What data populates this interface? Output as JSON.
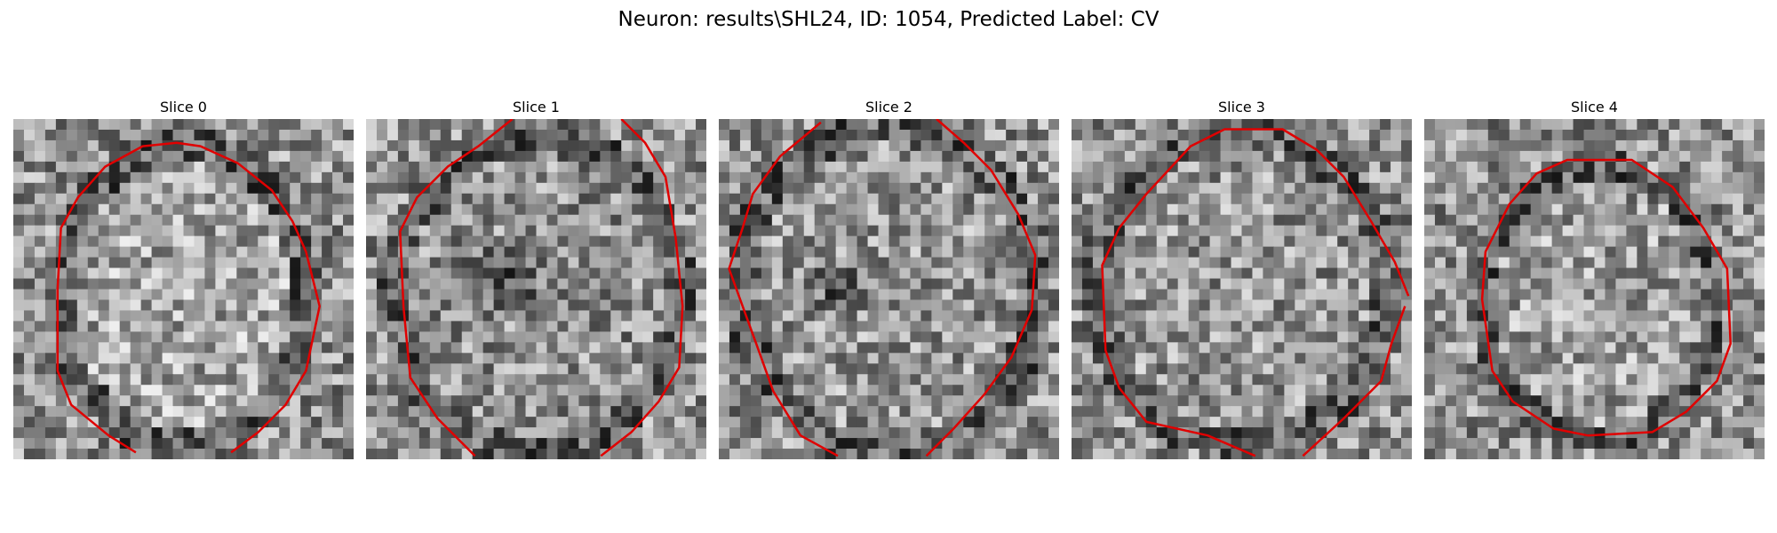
{
  "figure": {
    "title": "Neuron: results\\SHL24, ID: 1054, Predicted Label: CV",
    "contour_color": "#e00000"
  },
  "panels": [
    {
      "title": "Slice 0",
      "icon": "grayscale-slice-image"
    },
    {
      "title": "Slice 1",
      "icon": "grayscale-slice-image"
    },
    {
      "title": "Slice 2",
      "icon": "grayscale-slice-image"
    },
    {
      "title": "Slice 3",
      "icon": "grayscale-slice-image"
    },
    {
      "title": "Slice 4",
      "icon": "grayscale-slice-image"
    }
  ]
}
